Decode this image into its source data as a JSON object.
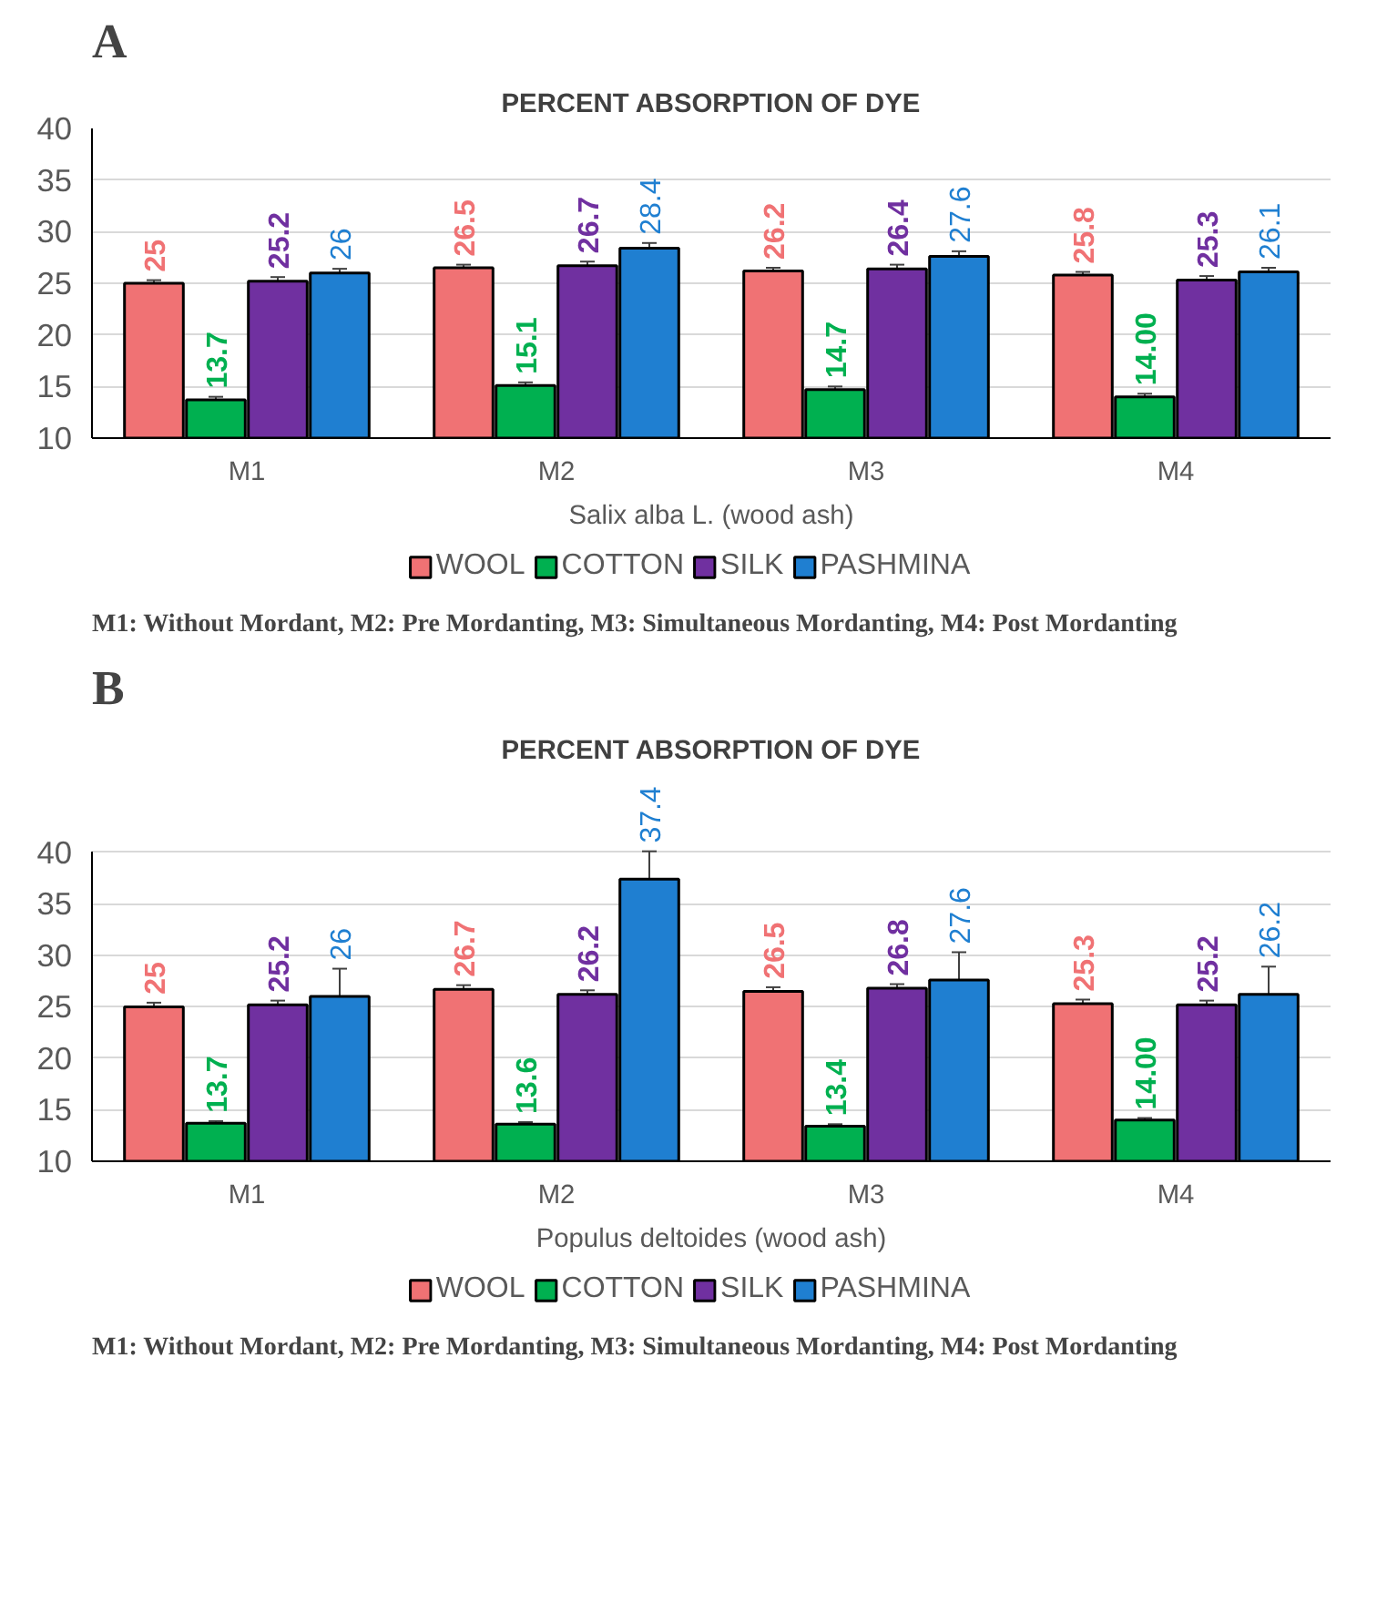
{
  "chart_data": [
    {
      "type": "bar",
      "title": "PERCENT ABSORPTION OF DYE",
      "xlabel": "Salix alba L. (wood ash)",
      "categories": [
        "M1",
        "M2",
        "M3",
        "M4"
      ],
      "ylim": [
        10,
        40
      ],
      "yticks": [
        10,
        15,
        20,
        25,
        30,
        35,
        40
      ],
      "grid": "y",
      "legend": "bottom",
      "data_labels": true,
      "annotations": [
        "A",
        "M1: Without Mordant, M2: Pre Mordanting, M3: Simultaneous Mordanting, M4: Post Mordanting"
      ],
      "series": [
        {
          "name": "WOOL",
          "color": "#f07274",
          "values": [
            25,
            26.5,
            26.2,
            25.8
          ],
          "errors": [
            0.3,
            0.3,
            0.3,
            0.3
          ],
          "value_labels": [
            "25",
            "26.5",
            "26.2",
            "25.8"
          ]
        },
        {
          "name": "COTTON",
          "color": "#00b050",
          "values": [
            13.7,
            15.1,
            14.7,
            14.0
          ],
          "errors": [
            0.3,
            0.3,
            0.3,
            0.3
          ],
          "value_labels": [
            "13.7",
            "15.1",
            "14.7",
            "14.00"
          ]
        },
        {
          "name": "SILK",
          "color": "#7030a0",
          "values": [
            25.2,
            26.7,
            26.4,
            25.3
          ],
          "errors": [
            0.4,
            0.4,
            0.4,
            0.4
          ],
          "value_labels": [
            "25.2",
            "26.7",
            "26.4",
            "25.3"
          ]
        },
        {
          "name": "PASHMINA",
          "color": "#1f7fd1",
          "values": [
            26,
            28.4,
            27.6,
            26.1
          ],
          "errors": [
            0.4,
            0.5,
            0.5,
            0.4
          ],
          "value_labels": [
            "26",
            "28.4",
            "27.6",
            "26.1"
          ]
        }
      ]
    },
    {
      "type": "bar",
      "title": "PERCENT ABSORPTION OF DYE",
      "xlabel": "Populus deltoides (wood ash)",
      "categories": [
        "M1",
        "M2",
        "M3",
        "M4"
      ],
      "ylim": [
        10,
        40
      ],
      "yticks": [
        10,
        15,
        20,
        25,
        30,
        35,
        40
      ],
      "grid": "y",
      "legend": "bottom",
      "data_labels": true,
      "annotations": [
        "B",
        "M1: Without Mordant, M2: Pre Mordanting, M3: Simultaneous Mordanting, M4: Post Mordanting"
      ],
      "series": [
        {
          "name": "WOOL",
          "color": "#f07274",
          "values": [
            25,
            26.7,
            26.5,
            25.3
          ],
          "errors": [
            0.4,
            0.4,
            0.4,
            0.4
          ],
          "value_labels": [
            "25",
            "26.7",
            "26.5",
            "25.3"
          ]
        },
        {
          "name": "COTTON",
          "color": "#00b050",
          "values": [
            13.7,
            13.6,
            13.4,
            14.0
          ],
          "errors": [
            0.2,
            0.2,
            0.2,
            0.2
          ],
          "value_labels": [
            "13.7",
            "13.6",
            "13.4",
            "14.00"
          ]
        },
        {
          "name": "SILK",
          "color": "#7030a0",
          "values": [
            25.2,
            26.2,
            26.8,
            25.2
          ],
          "errors": [
            0.4,
            0.4,
            0.4,
            0.4
          ],
          "value_labels": [
            "25.2",
            "26.2",
            "26.8",
            "25.2"
          ]
        },
        {
          "name": "PASHMINA",
          "color": "#1f7fd1",
          "values": [
            26,
            37.4,
            27.6,
            26.2
          ],
          "errors": [
            2.7,
            2.7,
            2.7,
            2.7
          ],
          "value_labels": [
            "26",
            "37.4",
            "27.6",
            "26.2"
          ]
        }
      ]
    }
  ]
}
